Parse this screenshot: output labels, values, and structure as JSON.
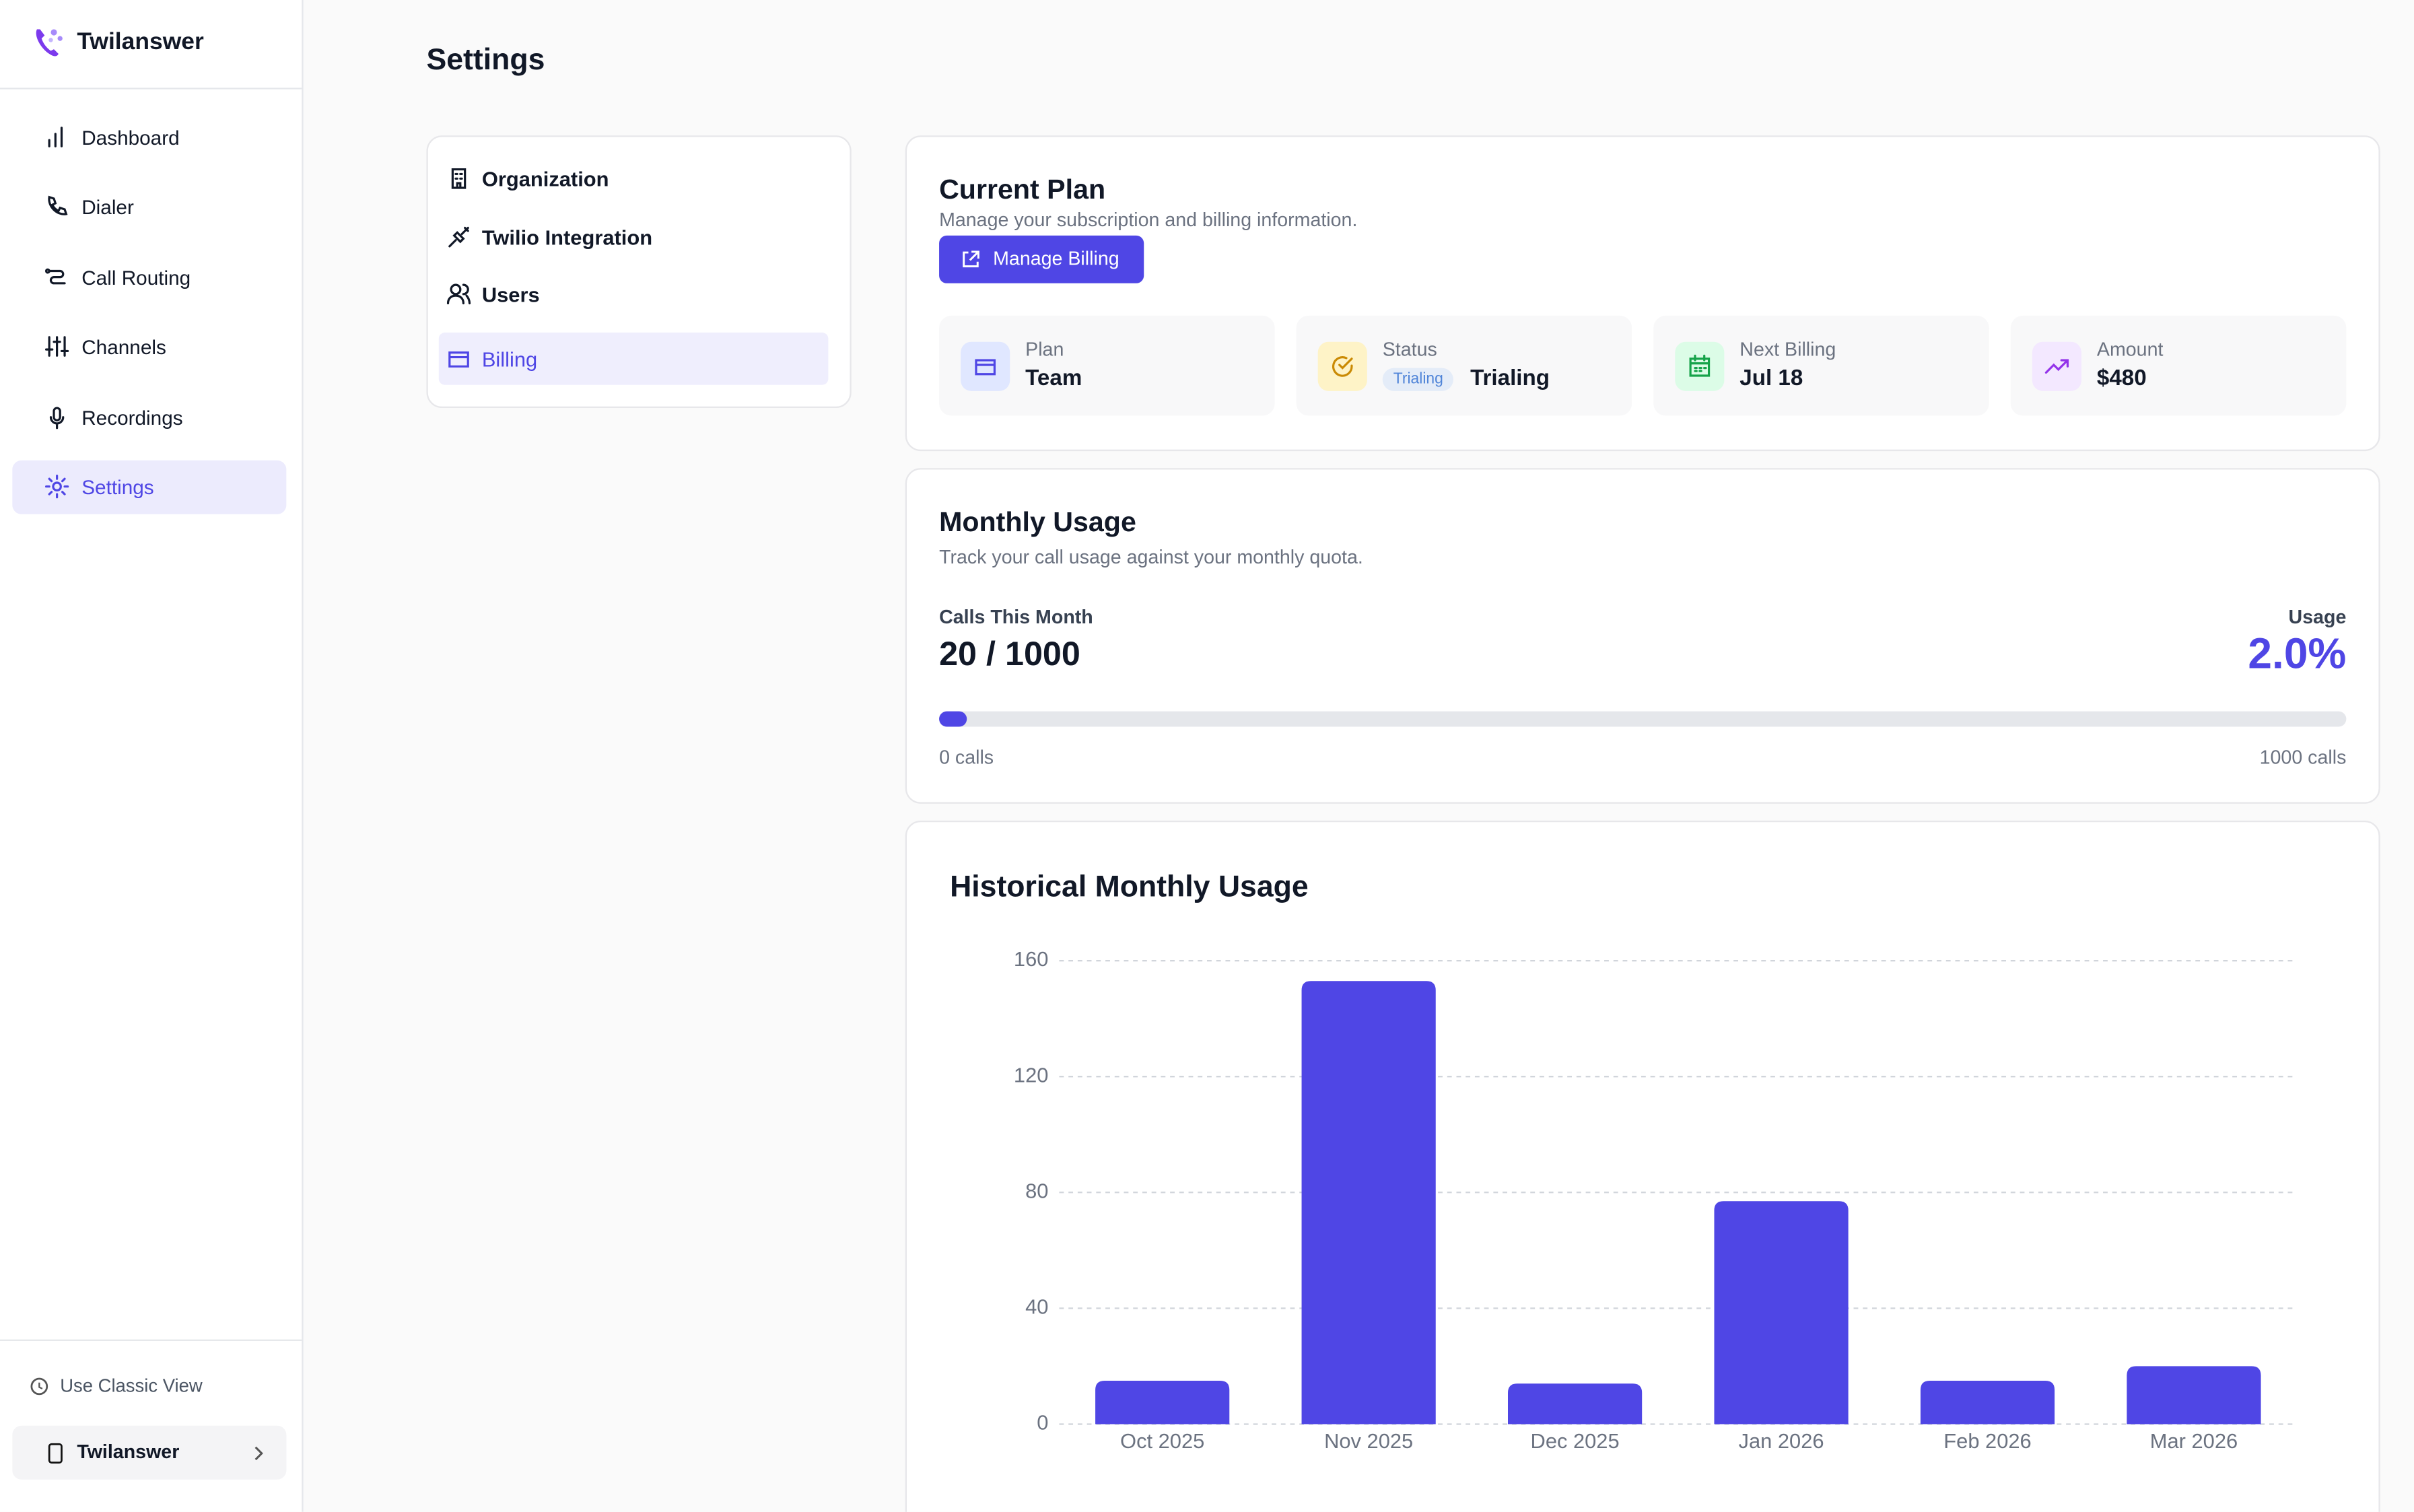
{
  "sidebar": {
    "brand": "Twilanswer",
    "nav": [
      "Dashboard",
      "Dialer",
      "Call Routing",
      "Channels",
      "Recordings",
      "Settings"
    ],
    "classic_view": "Use Classic View",
    "account": "Twilanswer"
  },
  "header": {
    "title": "Settings"
  },
  "tabs": [
    "Organization",
    "Twilio Integration",
    "Users",
    "Billing"
  ],
  "current_plan": {
    "title": "Current Plan",
    "subtitle": "Manage your subscription and billing information.",
    "button": "Manage Billing",
    "stats": [
      {
        "label": "Plan",
        "value": "Team"
      },
      {
        "label": "Status",
        "badge": "Trialing",
        "value": "Trialing"
      },
      {
        "label": "Next Billing",
        "value": "Jul 18"
      },
      {
        "label": "Amount",
        "value": "$480"
      }
    ]
  },
  "monthly_usage": {
    "title": "Monthly Usage",
    "subtitle": "Track your call usage against your monthly quota.",
    "calls_label": "Calls This Month",
    "calls_value": "20 / 1000",
    "usage_label": "Usage",
    "usage": {
      "value": 2.0,
      "label": "2.0%"
    },
    "scale_start": "0 calls",
    "scale_end": "1000 calls"
  },
  "chart_data": {
    "type": "bar",
    "title": "Historical Monthly Usage",
    "categories": [
      "Oct 2025",
      "Nov 2025",
      "Dec 2025",
      "Jan 2026",
      "Feb 2026",
      "Mar 2026"
    ],
    "values": [
      15,
      153,
      14,
      77,
      15,
      20
    ],
    "color": "#4f46e5",
    "ylim": [
      0,
      160
    ],
    "yticks": [
      0,
      40,
      80,
      120,
      160
    ],
    "grid": true
  }
}
